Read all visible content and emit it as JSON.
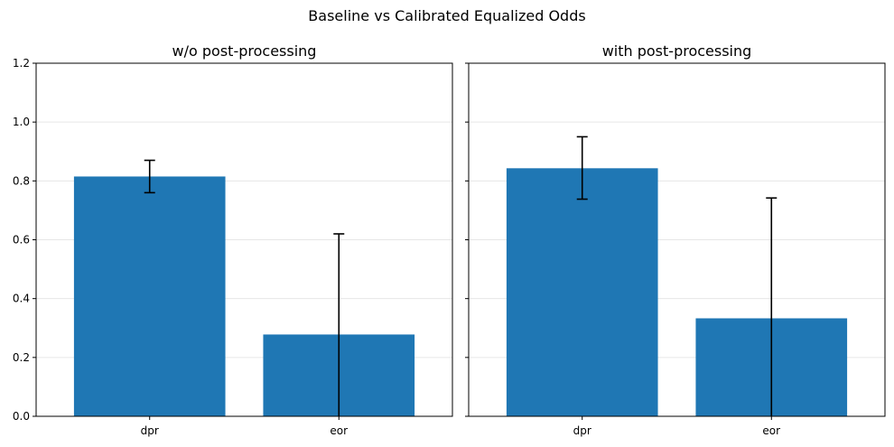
{
  "figure": {
    "title": "Baseline vs Calibrated Equalized Odds"
  },
  "chart_data": [
    {
      "type": "bar",
      "title": "w/o post-processing",
      "categories": [
        "dpr",
        "eor"
      ],
      "values": [
        0.815,
        0.278
      ],
      "error_low": [
        0.76,
        0.0
      ],
      "error_high": [
        0.87,
        0.62
      ],
      "xlabel": "",
      "ylabel": "",
      "ylim": [
        0,
        1.2
      ],
      "yticks": [
        "0.0",
        "0.2",
        "0.4",
        "0.6",
        "0.8",
        "1.0",
        "1.2"
      ],
      "grid": "horizontal",
      "bar_color": "#1f77b4"
    },
    {
      "type": "bar",
      "title": "with post-processing",
      "categories": [
        "dpr",
        "eor"
      ],
      "values": [
        0.843,
        0.333
      ],
      "error_low": [
        0.738,
        0.0
      ],
      "error_high": [
        0.95,
        0.742
      ],
      "xlabel": "",
      "ylabel": "",
      "ylim": [
        0,
        1.2
      ],
      "yticks": [],
      "grid": "horizontal",
      "bar_color": "#1f77b4"
    }
  ]
}
